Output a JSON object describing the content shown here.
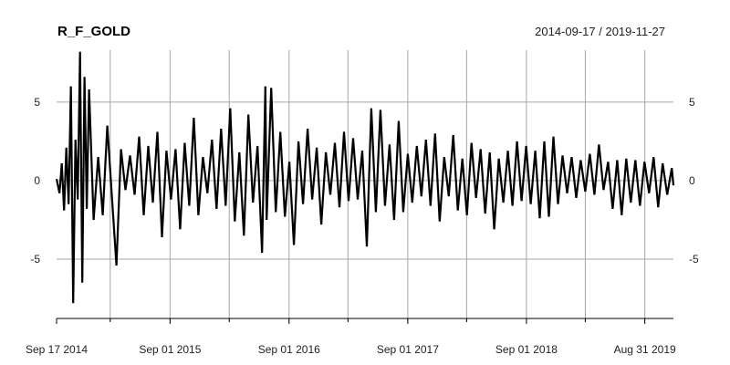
{
  "chart_data": {
    "type": "line",
    "title": "R_F_GOLD",
    "date_range": "2014-09-17 / 2019-11-27",
    "start_date": "2014-09-17",
    "end_date": "2019-11-27",
    "ylim": [
      -8.6,
      8.3
    ],
    "grid": true,
    "y_ticks": [
      -5,
      0,
      5
    ],
    "y_tick_labels": [
      "-5",
      "0",
      "5"
    ],
    "x_ticks": [
      "2014-09-17",
      "2015-09-01",
      "2016-09-01",
      "2017-09-01",
      "2018-09-01",
      "2019-08-31"
    ],
    "x_tick_labels": [
      "Sep 17 2014",
      "Sep 01 2015",
      "Sep 01 2016",
      "Sep 01 2017",
      "Sep 01 2018",
      "Aug 31 2019"
    ],
    "x_minor_ticks": [
      "2015-03-01",
      "2016-03-01",
      "2017-03-01",
      "2018-03-01",
      "2019-03-01"
    ],
    "vgrid": [
      "2015-03-01",
      "2015-09-01",
      "2016-03-01",
      "2016-09-01",
      "2017-03-01",
      "2017-09-01",
      "2018-03-01",
      "2018-09-01",
      "2019-03-01",
      "2019-08-31"
    ],
    "series": [
      {
        "color": "#000000",
        "x": [
          "2014-09-17",
          "2014-09-26",
          "2014-10-03",
          "2014-10-10",
          "2014-10-17",
          "2014-10-24",
          "2014-10-31",
          "2014-11-07",
          "2014-11-14",
          "2014-11-21",
          "2014-11-28",
          "2014-12-05",
          "2014-12-12",
          "2014-12-19",
          "2014-12-26",
          "2015-01-09",
          "2015-01-23",
          "2015-02-06",
          "2015-02-20",
          "2015-03-06",
          "2015-03-20",
          "2015-04-03",
          "2015-04-17",
          "2015-05-01",
          "2015-05-15",
          "2015-05-29",
          "2015-06-12",
          "2015-06-26",
          "2015-07-10",
          "2015-07-24",
          "2015-08-07",
          "2015-08-21",
          "2015-09-04",
          "2015-09-18",
          "2015-10-02",
          "2015-10-16",
          "2015-10-30",
          "2015-11-13",
          "2015-11-27",
          "2015-12-11",
          "2015-12-25",
          "2016-01-08",
          "2016-01-22",
          "2016-02-05",
          "2016-02-19",
          "2016-03-04",
          "2016-03-18",
          "2016-04-01",
          "2016-04-15",
          "2016-04-29",
          "2016-05-13",
          "2016-05-27",
          "2016-06-10",
          "2016-06-20",
          "2016-06-24",
          "2016-07-08",
          "2016-07-22",
          "2016-08-05",
          "2016-08-19",
          "2016-09-02",
          "2016-09-16",
          "2016-09-30",
          "2016-10-14",
          "2016-10-28",
          "2016-11-11",
          "2016-11-25",
          "2016-12-09",
          "2016-12-23",
          "2017-01-06",
          "2017-01-20",
          "2017-02-03",
          "2017-02-17",
          "2017-03-03",
          "2017-03-17",
          "2017-03-31",
          "2017-04-14",
          "2017-04-28",
          "2017-05-12",
          "2017-05-26",
          "2017-06-09",
          "2017-06-23",
          "2017-07-07",
          "2017-07-21",
          "2017-08-04",
          "2017-08-18",
          "2017-09-01",
          "2017-09-15",
          "2017-09-29",
          "2017-10-13",
          "2017-10-27",
          "2017-11-10",
          "2017-11-24",
          "2017-12-08",
          "2017-12-22",
          "2018-01-05",
          "2018-01-19",
          "2018-02-02",
          "2018-02-16",
          "2018-03-02",
          "2018-03-16",
          "2018-03-30",
          "2018-04-13",
          "2018-04-27",
          "2018-05-11",
          "2018-05-25",
          "2018-06-08",
          "2018-06-22",
          "2018-07-06",
          "2018-07-20",
          "2018-08-03",
          "2018-08-17",
          "2018-08-31",
          "2018-09-14",
          "2018-09-28",
          "2018-10-12",
          "2018-10-26",
          "2018-11-09",
          "2018-11-23",
          "2018-12-07",
          "2018-12-21",
          "2019-01-04",
          "2019-01-18",
          "2019-02-01",
          "2019-02-15",
          "2019-03-01",
          "2019-03-15",
          "2019-03-29",
          "2019-04-12",
          "2019-04-26",
          "2019-05-10",
          "2019-05-24",
          "2019-06-07",
          "2019-06-21",
          "2019-07-05",
          "2019-07-19",
          "2019-08-02",
          "2019-08-16",
          "2019-08-30",
          "2019-09-13",
          "2019-09-27",
          "2019-10-11",
          "2019-10-25",
          "2019-11-08",
          "2019-11-22",
          "2019-11-27"
        ],
        "values": [
          0.1,
          -0.8,
          1.1,
          -1.9,
          2.1,
          -1.5,
          6.0,
          -7.8,
          2.6,
          -1.2,
          8.2,
          -6.5,
          6.6,
          -1.8,
          5.8,
          -2.5,
          1.5,
          -2.2,
          3.5,
          -1.0,
          -5.4,
          2.0,
          -0.6,
          1.6,
          -0.9,
          2.8,
          -2.2,
          2.2,
          -1.4,
          3.1,
          -3.6,
          1.9,
          -1.2,
          2.0,
          -3.1,
          2.4,
          -1.6,
          4.0,
          -2.2,
          1.5,
          -0.8,
          2.6,
          -1.8,
          3.3,
          -1.6,
          4.6,
          -2.6,
          1.8,
          -3.5,
          4.2,
          -1.4,
          2.2,
          -4.6,
          6.0,
          -2.5,
          5.9,
          -2.0,
          3.1,
          -2.3,
          1.2,
          -4.1,
          2.5,
          -1.5,
          3.3,
          -1.2,
          2.1,
          -2.8,
          1.8,
          -0.9,
          2.4,
          -1.7,
          3.1,
          -1.3,
          2.7,
          -1.2,
          1.9,
          -4.2,
          4.6,
          -2.0,
          4.5,
          -1.6,
          2.3,
          -2.5,
          3.8,
          -2.0,
          1.7,
          -1.4,
          2.2,
          -1.0,
          2.6,
          -1.6,
          3.0,
          -2.6,
          1.5,
          -1.0,
          2.9,
          -1.9,
          1.4,
          -2.2,
          2.4,
          -1.1,
          2.0,
          -2.1,
          1.8,
          -3.1,
          1.4,
          -1.4,
          1.9,
          -1.6,
          2.5,
          -1.3,
          2.2,
          -1.5,
          1.9,
          -2.4,
          2.5,
          -2.3,
          2.8,
          -1.5,
          1.6,
          -0.8,
          1.5,
          -1.1,
          1.3,
          -0.7,
          1.7,
          -0.9,
          2.3,
          -0.6,
          1.2,
          -1.8,
          1.3,
          -2.2,
          1.4,
          -1.4,
          1.3,
          -1.6,
          1.2,
          -0.8,
          1.5,
          -1.7,
          1.1,
          -0.9,
          0.8,
          -0.3
        ]
      }
    ]
  }
}
